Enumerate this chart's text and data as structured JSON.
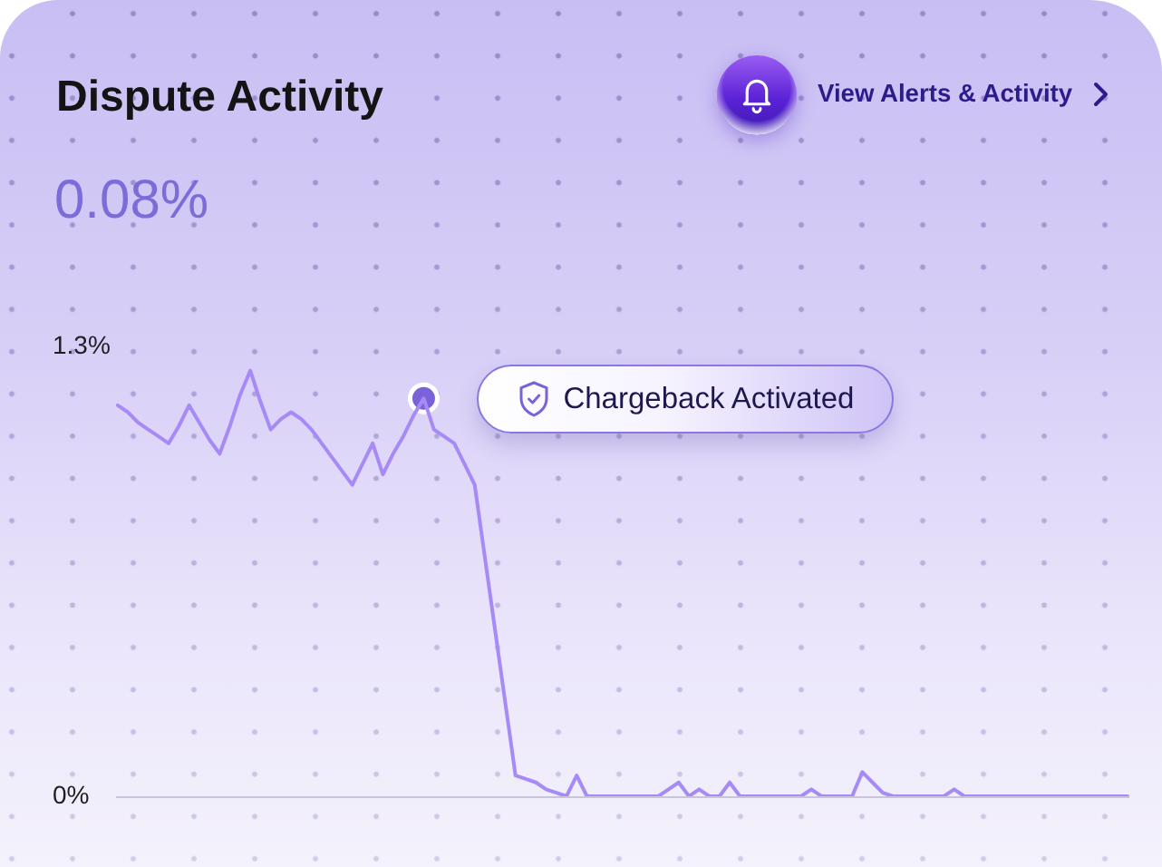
{
  "chart_data": {
    "type": "line",
    "title": "Dispute Activity",
    "subtitle": "0.08%",
    "categories": [
      null,
      null,
      null,
      null,
      null,
      null,
      null,
      null,
      null,
      null,
      null,
      null,
      null,
      null,
      null,
      null,
      null,
      null,
      null,
      null,
      null,
      null,
      null,
      null,
      null,
      null,
      null,
      null,
      null,
      null,
      null,
      null,
      null,
      null,
      null,
      null,
      null,
      null,
      null,
      null,
      null,
      null,
      null,
      null,
      null,
      null,
      null,
      null,
      null,
      null,
      null,
      null,
      null,
      null,
      null,
      null,
      null,
      null,
      null,
      null,
      null,
      null,
      null,
      null,
      null,
      null,
      null,
      null,
      null,
      null,
      null,
      null,
      null,
      null,
      null,
      null,
      null,
      null,
      null,
      null,
      null,
      null,
      null,
      null,
      null,
      null,
      null,
      null,
      null,
      null,
      null,
      null,
      null,
      null,
      null,
      null,
      null,
      null,
      null,
      null
    ],
    "series": [
      {
        "color": "#a68af6",
        "values": [
          1.13,
          1.11,
          1.08,
          1.06,
          1.04,
          1.02,
          1.07,
          1.13,
          1.08,
          1.03,
          0.99,
          1.07,
          1.16,
          1.23,
          1.14,
          1.06,
          1.09,
          1.11,
          1.09,
          1.06,
          1.02,
          0.98,
          0.94,
          0.9,
          0.96,
          1.02,
          0.93,
          0.99,
          1.04,
          1.1,
          1.15,
          1.06,
          1.04,
          1.02,
          0.96,
          0.9,
          0.69,
          0.48,
          0.27,
          0.06,
          0.05,
          0.04,
          0.02,
          0.01,
          0,
          0.06,
          0,
          0,
          0,
          0,
          0,
          0,
          0,
          0,
          0.02,
          0.04,
          0,
          0.02,
          0,
          0,
          0.04,
          0,
          0,
          0,
          0,
          0,
          0,
          0,
          0.02,
          0,
          0,
          0,
          0,
          0.07,
          0.04,
          0.01,
          0,
          0,
          0,
          0,
          0,
          0,
          0.02,
          0,
          0,
          0,
          0,
          0,
          0,
          0,
          0,
          0,
          0,
          0,
          0,
          0,
          0,
          0,
          0,
          0
        ]
      },
      {
        "type": "scatter",
        "color": "#7b62d9",
        "marker": "circle",
        "values": [
          null,
          null,
          null,
          null,
          null,
          null,
          null,
          null,
          null,
          null,
          null,
          null,
          null,
          null,
          null,
          null,
          null,
          null,
          null,
          null,
          null,
          null,
          null,
          null,
          null,
          null,
          null,
          null,
          null,
          null,
          1.15,
          null,
          null,
          null,
          null,
          null,
          null,
          null,
          null,
          null,
          null,
          null,
          null,
          null,
          null,
          null,
          null,
          null,
          null,
          null,
          null,
          null,
          null,
          null,
          null,
          null,
          null,
          null,
          null,
          null,
          null,
          null,
          null,
          null,
          null,
          null,
          null,
          null,
          null,
          null,
          null,
          null,
          null,
          null,
          null,
          null,
          null,
          null,
          null,
          null,
          null,
          null,
          null,
          null,
          null,
          null,
          null,
          null,
          null,
          null,
          null,
          null,
          null,
          null,
          null,
          null,
          null,
          null,
          null,
          null
        ]
      }
    ],
    "ylim": [
      0,
      1.3
    ],
    "yticks": [
      {
        "value": 0,
        "label": "0%"
      },
      {
        "value": 1.3,
        "label": "1.3%"
      }
    ],
    "tick_labels": "y",
    "annotations": [
      "Chargeback Activated",
      "View Alerts & Activity"
    ]
  }
}
